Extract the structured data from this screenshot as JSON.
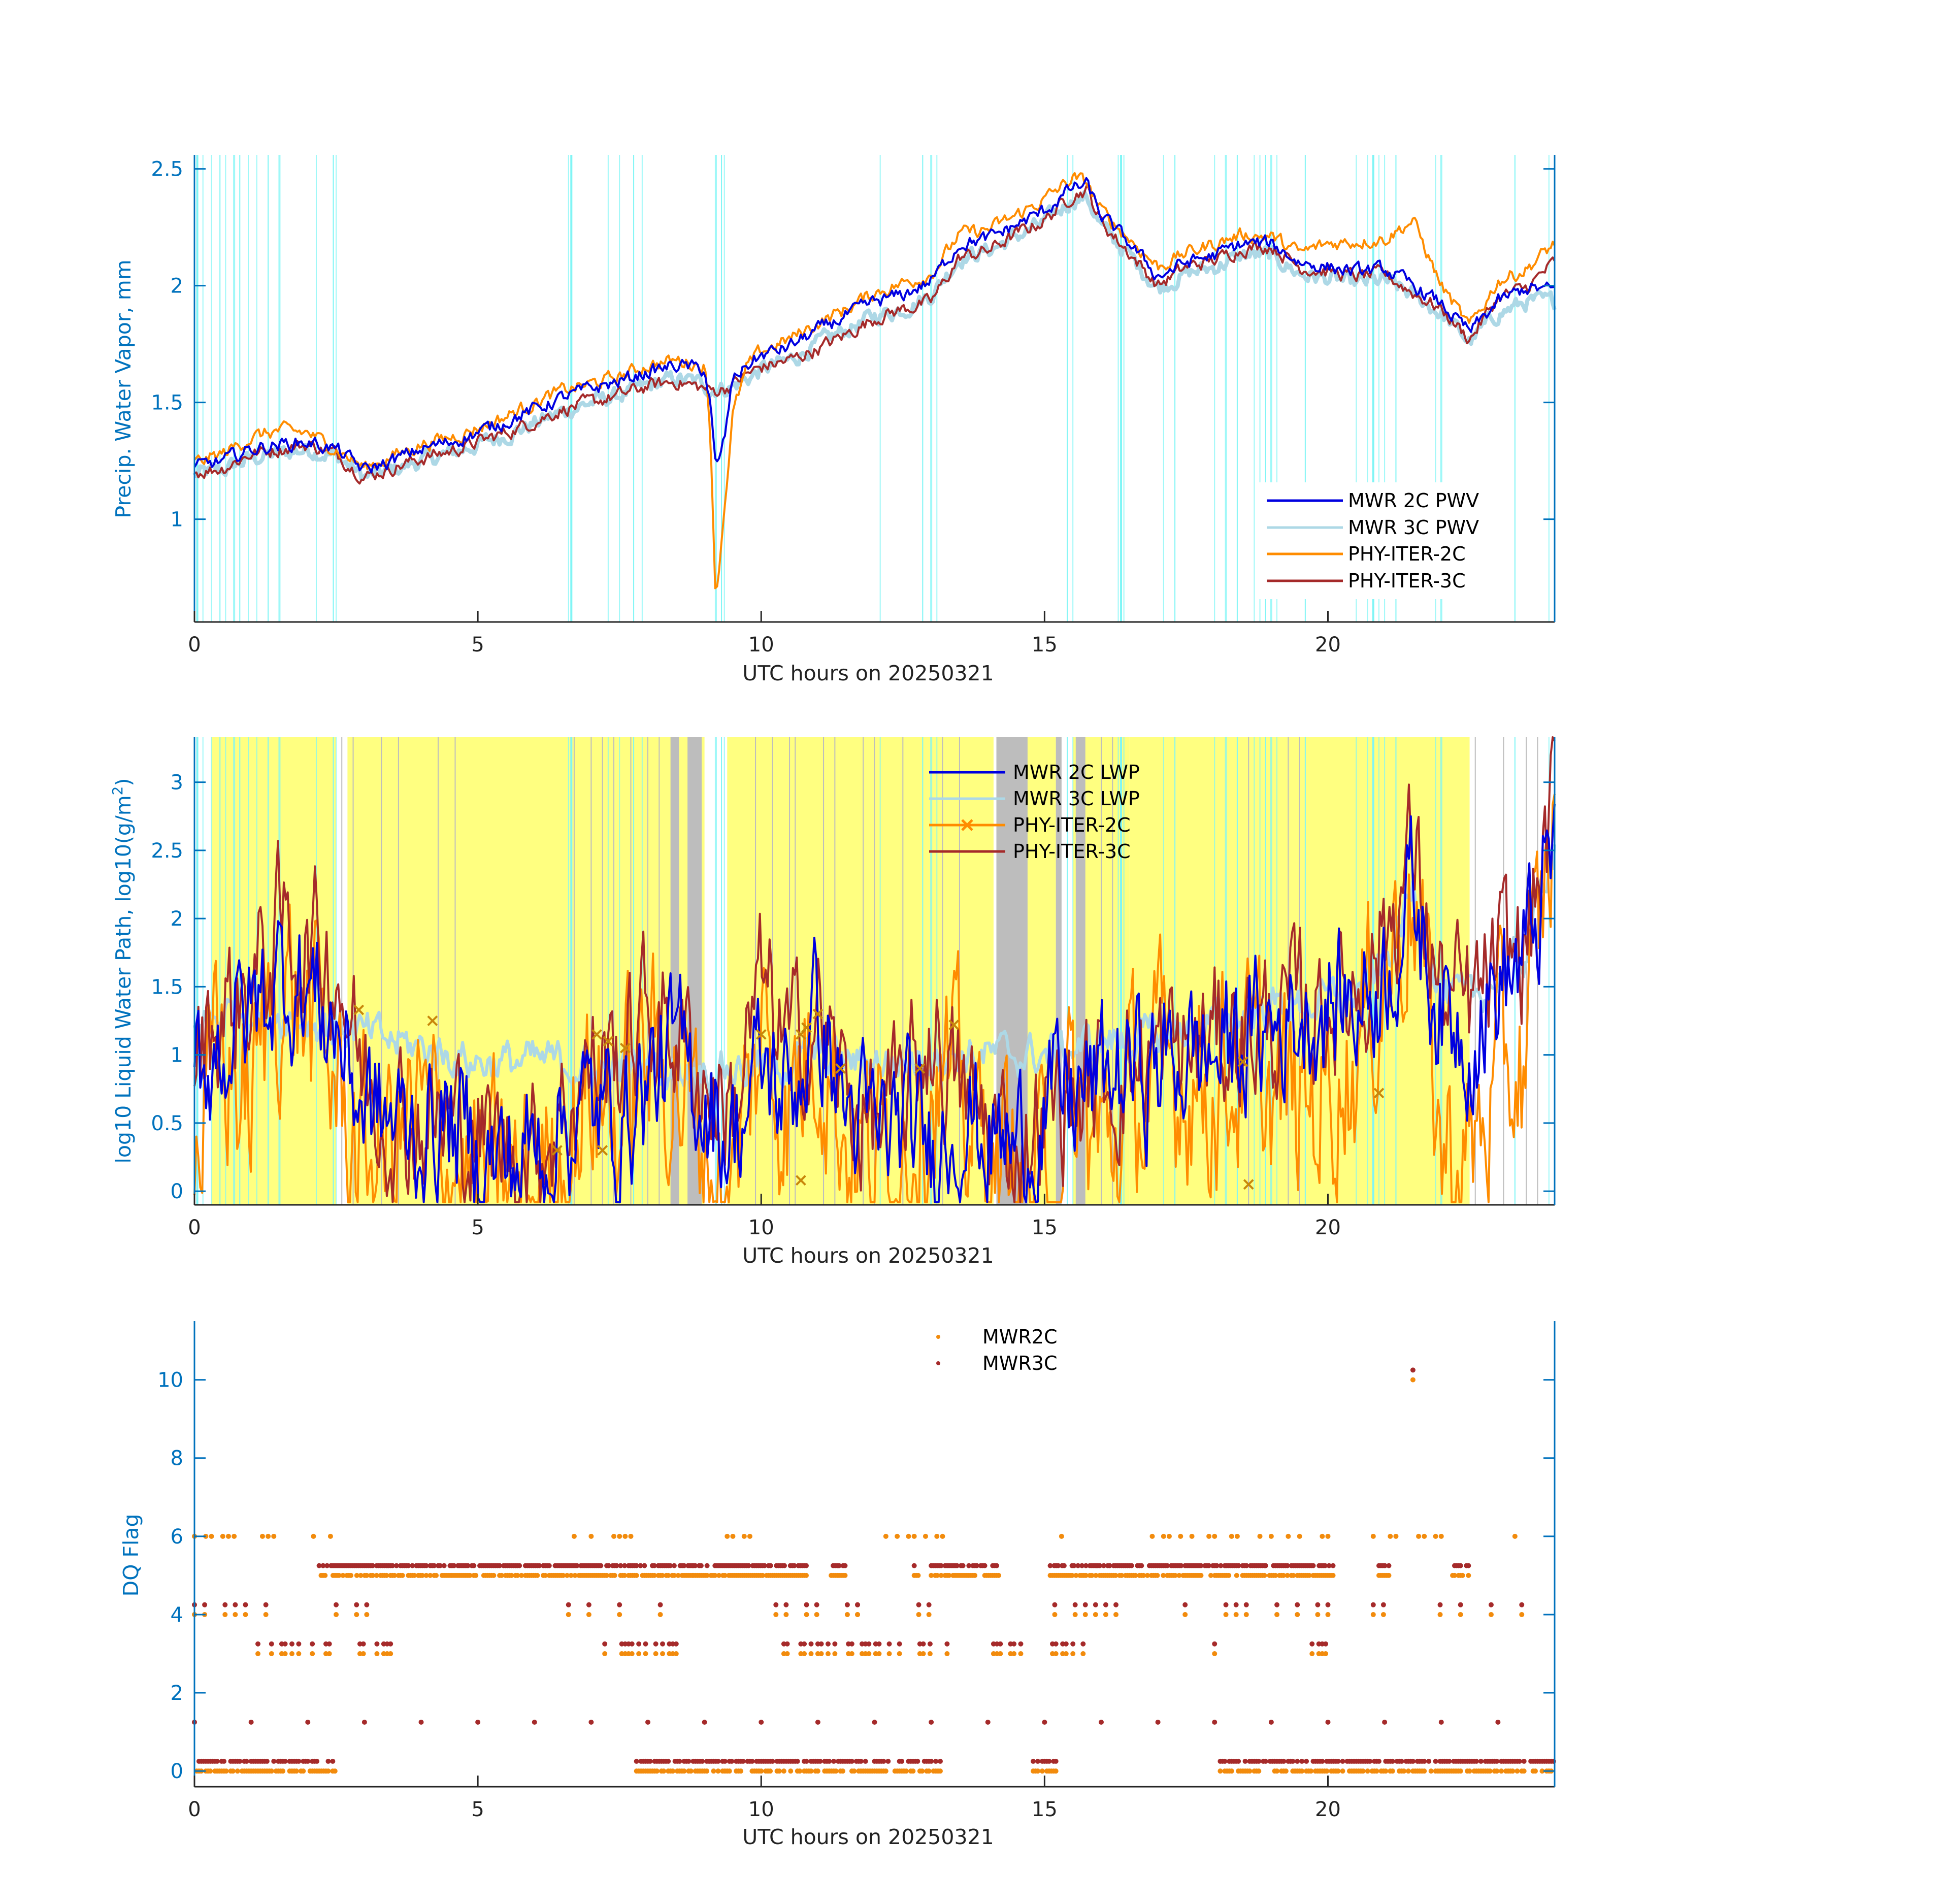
{
  "colors": {
    "mwr2c": "#0000e0",
    "mwr3c": "#add8e6",
    "phy2c": "#ff8c00",
    "phy3c": "#a52a2a",
    "cyan_flag": "#7ff5f5",
    "yellow_flag": "#ffff80",
    "gray_flag": "#bdbdbd",
    "axis": "#0072bd",
    "axis_dark": "#262626",
    "dq_mwr2c": "#f28b0c",
    "dq_mwr3c": "#a52a2a"
  },
  "chart_data": [
    {
      "type": "line",
      "xlabel": "UTC hours on 20250321",
      "ylabel": "Precip. Water Vapor, mm",
      "xlim": [
        0,
        24
      ],
      "ylim": [
        0.56,
        2.56
      ],
      "xticks": [
        "0",
        "5",
        "10",
        "15",
        "20"
      ],
      "yticks": [
        "1",
        "1.5",
        "2",
        "2.5"
      ],
      "xtick_values": [
        0,
        5,
        10,
        15,
        20
      ],
      "ytick_values": [
        1,
        1.5,
        2,
        2.5
      ],
      "legend": "bottom-right",
      "x": [
        0,
        0.5,
        1,
        1.5,
        2,
        2.5,
        3,
        3.5,
        4,
        4.5,
        5,
        5.5,
        6,
        6.5,
        7,
        7.5,
        8,
        8.5,
        9,
        9.1,
        9.2,
        9.35,
        9.5,
        9.75,
        10,
        10.5,
        11,
        11.5,
        12,
        12.5,
        13,
        13.5,
        14,
        14.5,
        15,
        15.5,
        15.75,
        16,
        16.5,
        17,
        17.5,
        18,
        18.5,
        19,
        19.5,
        20,
        20.5,
        21,
        21.5,
        22,
        22.5,
        23,
        23.5,
        24
      ],
      "series": [
        {
          "name": "MWR 2C PWV",
          "color_key": "mwr2c",
          "values": [
            1.22,
            1.25,
            1.3,
            1.32,
            1.33,
            1.3,
            1.21,
            1.25,
            1.3,
            1.33,
            1.37,
            1.42,
            1.47,
            1.52,
            1.56,
            1.59,
            1.63,
            1.66,
            1.64,
            1.5,
            1.2,
            1.34,
            1.6,
            1.66,
            1.7,
            1.74,
            1.81,
            1.87,
            1.93,
            1.96,
            2.02,
            2.18,
            2.2,
            2.26,
            2.32,
            2.42,
            2.43,
            2.3,
            2.18,
            2.04,
            2.1,
            2.13,
            2.18,
            2.18,
            2.1,
            2.08,
            2.06,
            2.07,
            2.0,
            1.92,
            1.8,
            1.93,
            1.99,
            1.98
          ]
        },
        {
          "name": "MWR 3C PWV",
          "color_key": "mwr3c",
          "values": [
            1.19,
            1.21,
            1.26,
            1.28,
            1.3,
            1.27,
            1.18,
            1.21,
            1.25,
            1.28,
            1.32,
            1.36,
            1.41,
            1.46,
            1.5,
            1.53,
            1.57,
            1.6,
            1.58,
            1.55,
            1.56,
            1.56,
            1.57,
            1.6,
            1.64,
            1.68,
            1.75,
            1.81,
            1.87,
            1.9,
            1.96,
            2.12,
            2.15,
            2.21,
            2.27,
            2.37,
            2.38,
            2.25,
            2.13,
            1.99,
            2.05,
            2.08,
            2.13,
            2.13,
            2.05,
            2.03,
            2.01,
            2.02,
            1.96,
            1.88,
            1.76,
            1.88,
            1.93,
            1.93
          ]
        },
        {
          "name": "PHY-ITER-2C",
          "color_key": "phy2c",
          "values": [
            1.24,
            1.28,
            1.35,
            1.38,
            1.37,
            1.3,
            1.22,
            1.27,
            1.32,
            1.35,
            1.39,
            1.44,
            1.5,
            1.55,
            1.58,
            1.61,
            1.66,
            1.68,
            1.66,
            1.4,
            0.65,
            1.05,
            1.45,
            1.65,
            1.72,
            1.77,
            1.84,
            1.9,
            1.97,
            2.01,
            2.05,
            2.22,
            2.24,
            2.3,
            2.37,
            2.46,
            2.44,
            2.32,
            2.2,
            2.08,
            2.14,
            2.18,
            2.22,
            2.21,
            2.14,
            2.18,
            2.19,
            2.2,
            2.28,
            2.0,
            1.82,
            2.02,
            2.07,
            2.18
          ]
        },
        {
          "name": "PHY-ITER-3C",
          "color_key": "phy3c",
          "values": [
            1.2,
            1.22,
            1.28,
            1.3,
            1.32,
            1.28,
            1.18,
            1.22,
            1.26,
            1.29,
            1.33,
            1.37,
            1.42,
            1.47,
            1.5,
            1.53,
            1.57,
            1.59,
            1.56,
            1.55,
            1.55,
            1.56,
            1.58,
            1.62,
            1.65,
            1.68,
            1.73,
            1.79,
            1.86,
            1.9,
            1.93,
            2.12,
            2.15,
            2.22,
            2.28,
            2.39,
            2.41,
            2.27,
            2.14,
            2.0,
            2.08,
            2.11,
            2.16,
            2.17,
            2.08,
            2.06,
            2.04,
            2.05,
            1.97,
            1.9,
            1.77,
            1.95,
            1.99,
            2.1
          ]
        }
      ]
    },
    {
      "type": "line",
      "xlabel": "UTC hours on 20250321",
      "ylabel": "log10 Liquid Water Path, log10(g/m",
      "ylabel_sup": "2",
      "ylabel_end": ")",
      "xlim": [
        0,
        24
      ],
      "ylim": [
        -0.1,
        3.33
      ],
      "xticks": [
        "0",
        "5",
        "10",
        "15",
        "20"
      ],
      "yticks": [
        "0",
        "0.5",
        "1",
        "1.5",
        "2",
        "2.5",
        "3"
      ],
      "xtick_values": [
        0,
        5,
        10,
        15,
        20
      ],
      "ytick_values": [
        0,
        0.5,
        1,
        1.5,
        2,
        2.5,
        3
      ],
      "legend": "top-center",
      "x": [
        0,
        0.5,
        1,
        1.5,
        2,
        2.5,
        3,
        3.5,
        4,
        4.5,
        5,
        5.5,
        6,
        6.5,
        7,
        7.5,
        8,
        8.5,
        9,
        9.5,
        10,
        10.5,
        11,
        11.5,
        12,
        12.5,
        13,
        13.5,
        14,
        14.5,
        15,
        15.5,
        16,
        16.5,
        17,
        17.5,
        18,
        18.5,
        19,
        19.5,
        20,
        20.5,
        21,
        21.5,
        22,
        22.5,
        23,
        23.5,
        24
      ],
      "series": [
        {
          "name": "MWR 2C LWP",
          "color_key": "mwr2c",
          "values": [
            0.9,
            1.1,
            1.3,
            1.6,
            1.5,
            1.2,
            0.6,
            0.5,
            0.4,
            0.5,
            0.3,
            0.2,
            0.3,
            0.5,
            0.6,
            0.5,
            0.8,
            1.0,
            0.7,
            0.4,
            0.9,
            0.7,
            1.3,
            0.6,
            0.4,
            0.5,
            0.3,
            0.6,
            0.4,
            0.3,
            0.6,
            0.7,
            0.8,
            0.9,
            0.9,
            1.0,
            1.0,
            1.1,
            1.2,
            1.3,
            1.35,
            1.4,
            1.6,
            2.2,
            1.3,
            1.2,
            1.5,
            1.7,
            2.5
          ]
        },
        {
          "name": "MWR 3C LWP",
          "color_key": "mwr3c",
          "values": [
            1.2,
            1.3,
            1.35,
            1.3,
            1.25,
            1.2,
            1.15,
            1.1,
            1.05,
            1.0,
            0.95,
            0.95,
            0.95,
            0.95,
            0.9,
            0.9,
            0.9,
            0.9,
            0.9,
            0.9,
            0.9,
            0.95,
            1.0,
            0.95,
            0.95,
            0.95,
            1.0,
            1.0,
            1.0,
            1.0,
            1.0,
            1.05,
            1.1,
            1.1,
            1.15,
            1.2,
            1.25,
            1.3,
            1.35,
            1.35,
            1.4,
            1.45,
            1.65,
            2.2,
            1.45,
            1.4,
            1.55,
            1.75,
            2.6
          ]
        },
        {
          "name": "PHY-ITER-2C",
          "color_key": "phy2c",
          "values": [
            0.3,
            1.0,
            0.6,
            1.6,
            1.3,
            0.8,
            0.2,
            0.4,
            0.5,
            0.3,
            0.0,
            0.0,
            0.0,
            0.3,
            0.8,
            0.5,
            1.0,
            0.9,
            0.3,
            0.0,
            1.2,
            0.6,
            1.3,
            0.4,
            0.2,
            0.4,
            0.9,
            0.6,
            0.3,
            0.1,
            0.0,
            0.5,
            0.3,
            0.6,
            0.8,
            0.9,
            0.8,
            0.9,
            0.7,
            0.6,
            0.8,
            1.0,
            1.6,
            2.3,
            0.3,
            0.2,
            0.8,
            1.0,
            2.8
          ]
        },
        {
          "name": "PHY-ITER-3C",
          "color_key": "phy3c",
          "values": [
            1.0,
            1.3,
            1.5,
            1.9,
            1.8,
            1.7,
            0.8,
            0.6,
            0.5,
            0.5,
            0.4,
            0.3,
            0.3,
            0.6,
            0.9,
            1.0,
            1.3,
            1.2,
            0.8,
            0.6,
            1.5,
            1.0,
            1.3,
            0.7,
            0.5,
            0.6,
            1.2,
            0.7,
            0.5,
            0.3,
            0.6,
            0.7,
            0.8,
            0.9,
            1.0,
            1.0,
            1.1,
            1.2,
            1.2,
            1.3,
            1.4,
            1.5,
            1.9,
            2.5,
            1.4,
            1.3,
            1.6,
            1.8,
            2.85
          ]
        }
      ],
      "markers_phy2c_x": [
        [
          2.9,
          1.33
        ],
        [
          4.2,
          1.25
        ],
        [
          7.1,
          1.15
        ],
        [
          7.3,
          1.1
        ],
        [
          7.6,
          1.05
        ],
        [
          10.0,
          1.15
        ],
        [
          10.7,
          1.15
        ],
        [
          10.8,
          1.2
        ],
        [
          11.0,
          1.3
        ],
        [
          11.4,
          0.9
        ],
        [
          12.8,
          0.9
        ],
        [
          13.4,
          1.22
        ],
        [
          10.7,
          0.08
        ],
        [
          18.5,
          0.95
        ],
        [
          18.6,
          0.05
        ],
        [
          20.9,
          0.72
        ],
        [
          6.4,
          0.3
        ],
        [
          7.2,
          0.3
        ]
      ]
    },
    {
      "type": "scatter",
      "xlabel": "UTC hours on 20250321",
      "ylabel": "DQ Flag",
      "xlim": [
        0,
        24
      ],
      "ylim": [
        -0.4,
        11.5
      ],
      "xticks": [
        "0",
        "5",
        "10",
        "15",
        "20"
      ],
      "yticks": [
        "0",
        "2",
        "4",
        "6",
        "8",
        "10"
      ],
      "xtick_values": [
        0,
        5,
        10,
        15,
        20
      ],
      "ytick_values": [
        0,
        2,
        4,
        6,
        8,
        10
      ],
      "legend": "top-center",
      "series": [
        {
          "name": "MWR2C",
          "color_key": "dq_mwr2c",
          "levels": [
            0,
            3,
            4,
            5,
            6,
            10
          ]
        },
        {
          "name": "MWR3C",
          "color_key": "dq_mwr3c",
          "levels": [
            0.25,
            1.25,
            3.25,
            4.25,
            5.25,
            6.25,
            10.25
          ]
        }
      ]
    }
  ]
}
